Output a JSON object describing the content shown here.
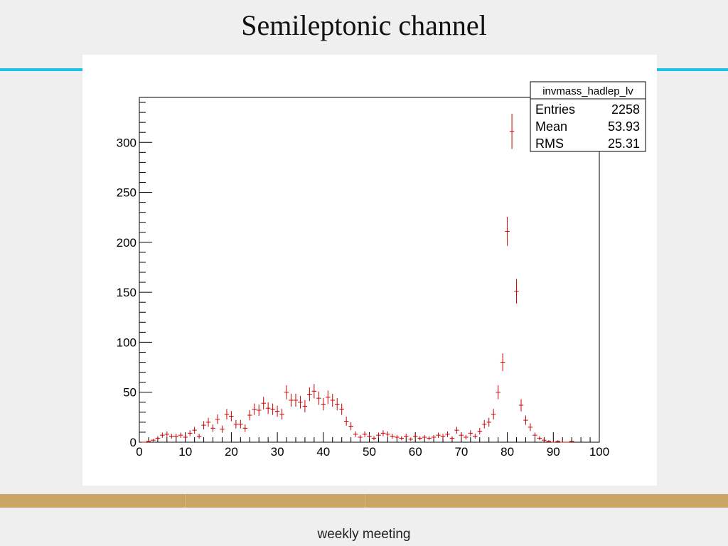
{
  "slide": {
    "title": "Semileptonic channel",
    "footer": "weekly meeting",
    "accent_color": "#1ec0e8",
    "footer_bar_color": "#c9a464"
  },
  "chart_data": {
    "type": "scatter",
    "style": "histogram points with error bars",
    "marker_color": "#cc0000",
    "title": "",
    "xlabel": "",
    "ylabel": "",
    "xlim": [
      0,
      100
    ],
    "ylim": [
      0,
      345
    ],
    "xticks": [
      0,
      10,
      20,
      30,
      40,
      50,
      60,
      70,
      80,
      90,
      100
    ],
    "yticks": [
      0,
      50,
      100,
      150,
      200,
      250,
      300
    ],
    "grid": false,
    "stats_box": {
      "name": "invmass_hadlep_lv",
      "rows": [
        {
          "label": "Entries",
          "value": "2258"
        },
        {
          "label": "Mean",
          "value": "53.93"
        },
        {
          "label": "RMS",
          "value": "25.31"
        }
      ],
      "position": "top-right"
    },
    "bin_width": 1,
    "x": [
      1,
      2,
      3,
      4,
      5,
      6,
      7,
      8,
      9,
      10,
      11,
      12,
      13,
      14,
      15,
      16,
      17,
      18,
      19,
      20,
      21,
      22,
      23,
      24,
      25,
      26,
      27,
      28,
      29,
      30,
      31,
      32,
      33,
      34,
      35,
      36,
      37,
      38,
      39,
      40,
      41,
      42,
      43,
      44,
      45,
      46,
      47,
      48,
      49,
      50,
      51,
      52,
      53,
      54,
      55,
      56,
      57,
      58,
      59,
      60,
      61,
      62,
      63,
      64,
      65,
      66,
      67,
      68,
      69,
      70,
      71,
      72,
      73,
      74,
      75,
      76,
      77,
      78,
      79,
      80,
      81,
      82,
      83,
      84,
      85,
      86,
      87,
      88,
      89,
      90,
      91,
      92,
      93,
      94
    ],
    "y": [
      0,
      1,
      2,
      4,
      7,
      8,
      6,
      6,
      7,
      5,
      9,
      12,
      6,
      17,
      20,
      14,
      23,
      13,
      28,
      26,
      18,
      18,
      14,
      27,
      33,
      32,
      39,
      34,
      33,
      31,
      28,
      50,
      42,
      42,
      40,
      36,
      48,
      51,
      44,
      38,
      45,
      42,
      38,
      33,
      21,
      16,
      8,
      5,
      8,
      6,
      4,
      7,
      9,
      8,
      6,
      5,
      4,
      6,
      3,
      6,
      4,
      5,
      4,
      5,
      7,
      6,
      8,
      4,
      12,
      7,
      5,
      9,
      6,
      11,
      18,
      20,
      28,
      50,
      80,
      211,
      311,
      151,
      37,
      22,
      15,
      7,
      4,
      2,
      1,
      0,
      1,
      0,
      0,
      1
    ]
  }
}
